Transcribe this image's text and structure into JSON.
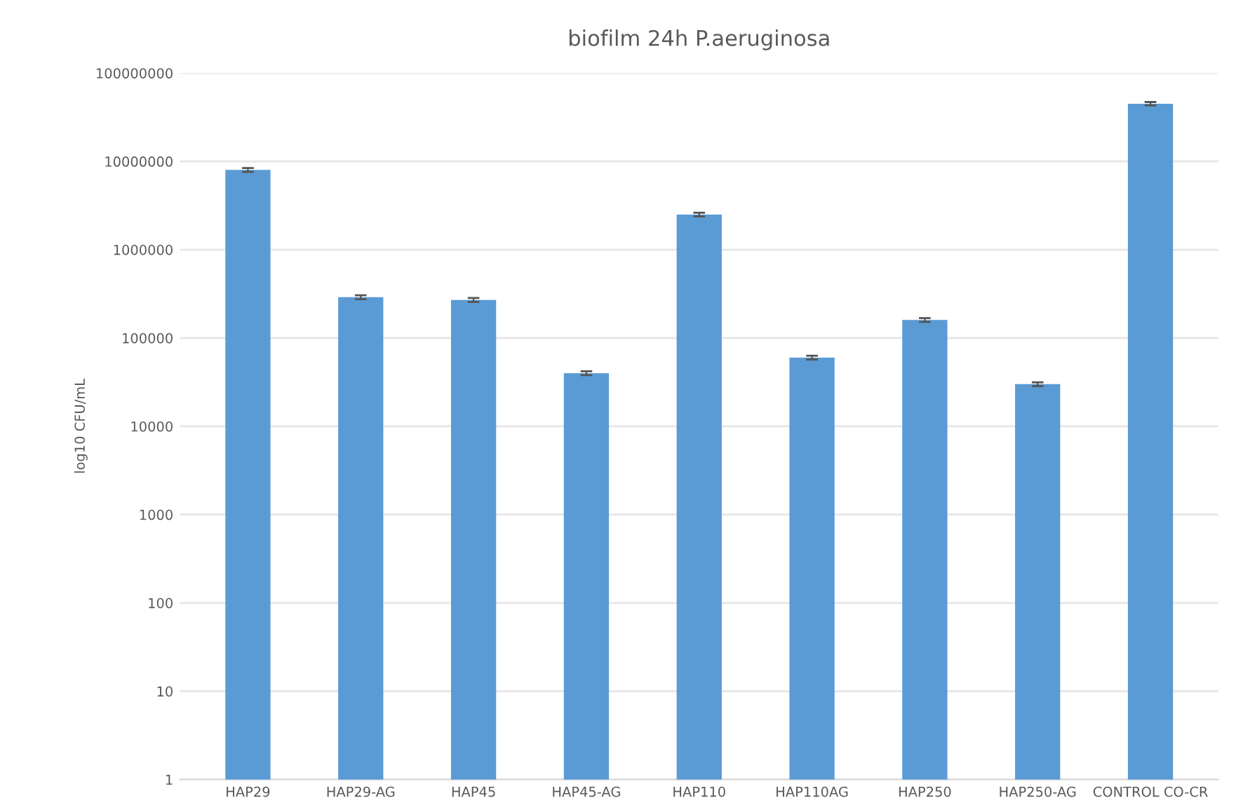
{
  "chart_data": {
    "type": "bar",
    "title": "biofilm 24h P.aeruginosa",
    "ylabel": "log10 CFU/mL",
    "categories": [
      "HAP29",
      "HAP29-AG",
      "HAP45",
      "HAP45-AG",
      "HAP110",
      "HAP110AG",
      "HAP250",
      "HAP250-AG",
      "CONTROL CO-CR"
    ],
    "values": [
      8000000,
      290000,
      270000,
      40000,
      2500000,
      60000,
      160000,
      30000,
      45000000
    ],
    "errors": [
      400000,
      15000,
      14000,
      2000,
      120000,
      3000,
      8000,
      1500,
      2000000
    ],
    "color": "#5b9bd5",
    "log": "y",
    "ylim": [
      1,
      100000000
    ],
    "yticks": [
      1,
      10,
      100,
      1000,
      10000,
      100000,
      1000000,
      10000000,
      100000000
    ],
    "grid": "y",
    "legend": false
  }
}
